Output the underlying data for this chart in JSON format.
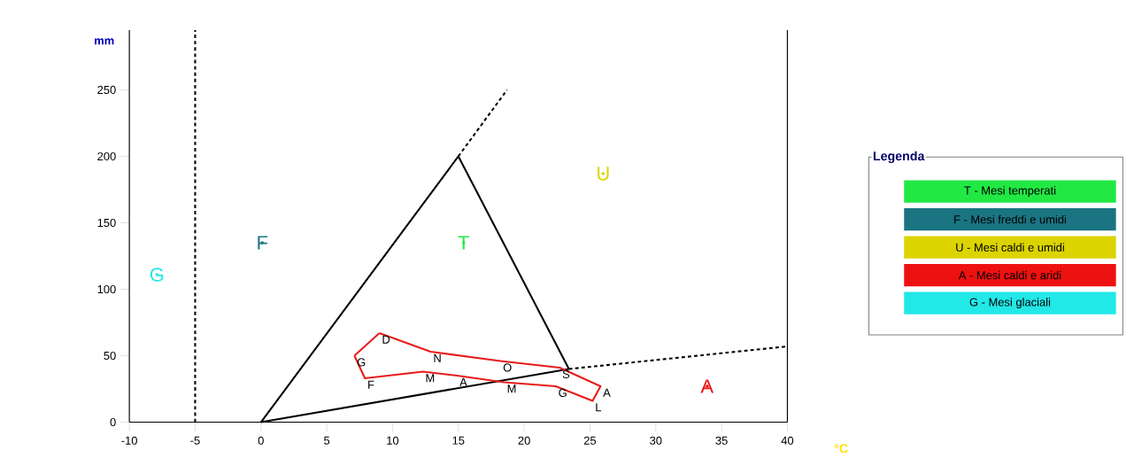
{
  "chart_data": {
    "type": "line",
    "xlabel": "°C",
    "ylabel": "mm",
    "legend_title": "Legenda",
    "legend": "right",
    "ref_lines": [
      {
        "axis": "x",
        "value": -5,
        "color": "#000000",
        "line_style": "dashed"
      }
    ],
    "xlim": [
      -10,
      40
    ],
    "ylim": [
      0,
      295
    ],
    "xticks": [
      -10,
      -5,
      0,
      5,
      10,
      15,
      20,
      25,
      30,
      35,
      40
    ],
    "yticks": [
      0,
      50,
      100,
      150,
      200,
      250
    ],
    "series": [
      {
        "name": "T - Mesi temperati",
        "type": "scatter",
        "color": "#22e844",
        "x": [
          15.4
        ],
        "values": [
          135
        ],
        "value_labels": [
          "T"
        ]
      },
      {
        "name": "F - Mesi freddi e umidi",
        "type": "scatter",
        "color": "#1a7482",
        "x": [
          0.1
        ],
        "values": [
          135
        ],
        "value_labels": [
          "F"
        ]
      },
      {
        "name": "U - Mesi caldi e umidi",
        "type": "scatter",
        "color": "#dcd400",
        "x": [
          26
        ],
        "values": [
          187
        ],
        "value_labels": [
          "U"
        ]
      },
      {
        "name": "A - Mesi caldi e aridi",
        "type": "scatter",
        "color": "#ee1111",
        "x": [
          33.9
        ],
        "values": [
          27
        ],
        "value_labels": [
          "A"
        ]
      },
      {
        "name": "G - Mesi glaciali",
        "type": "scatter",
        "color": "#22e8e8",
        "x": [
          -7.9
        ],
        "values": [
          111
        ],
        "value_labels": [
          "G"
        ]
      },
      {
        "color": "#000000",
        "x": [
          0,
          15,
          23.4
        ],
        "values": [
          0,
          200,
          40
        ]
      },
      {
        "color": "#000000",
        "x": [
          0,
          23.4
        ],
        "values": [
          0,
          40
        ]
      },
      {
        "color": "#000000",
        "line_style": "dashed",
        "x": [
          15,
          18.7
        ],
        "values": [
          200,
          250
        ]
      },
      {
        "color": "#000000",
        "line_style": "dashed",
        "x": [
          23.4,
          40
        ],
        "values": [
          40,
          57
        ]
      },
      {
        "color": "#e81c1c",
        "x": [
          7.1,
          7.9,
          12.3,
          14.9,
          18.5,
          22.4,
          25.2,
          25.8,
          22.7,
          18.2,
          12.9,
          9.0
        ],
        "values": [
          50,
          33,
          38,
          35,
          30,
          27,
          16,
          27,
          41,
          46,
          53,
          67
        ],
        "value_labels": [
          "G",
          "F",
          "M",
          "A",
          "M",
          "G",
          "L",
          "A",
          "S",
          "O",
          "N",
          "D"
        ]
      },
      {
        "color": "#e81c1c",
        "x": [
          9.0,
          7.1
        ],
        "values": [
          67,
          50
        ]
      }
    ]
  }
}
